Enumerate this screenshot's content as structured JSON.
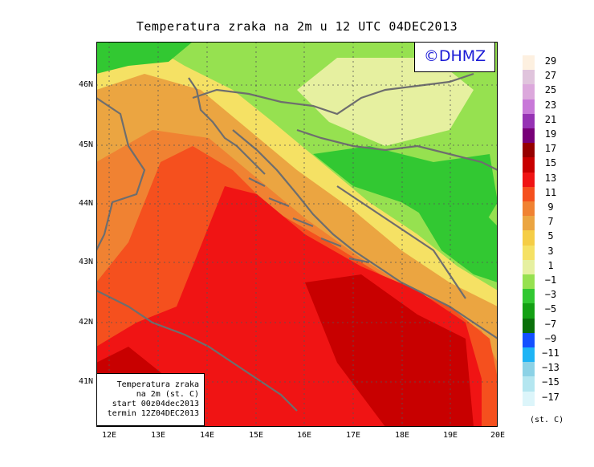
{
  "title": "Temperatura zraka na 2m u 12 UTC 04DEC2013",
  "logo": "©DHMZ",
  "info_box": {
    "line1": "Temperatura zraka",
    "line2": "na 2m (st. C)",
    "line3": "start 00z04dec2013",
    "line4": "termin 12Z04DEC2013"
  },
  "lat_labels": [
    "46N",
    "45N",
    "44N",
    "43N",
    "42N",
    "41N"
  ],
  "lon_labels": [
    "12E",
    "13E",
    "14E",
    "15E",
    "16E",
    "17E",
    "18E",
    "19E",
    "20E"
  ],
  "colorbar": {
    "labels": [
      "29",
      "27",
      "25",
      "23",
      "21",
      "19",
      "17",
      "15",
      "13",
      "11",
      "9",
      "7",
      "5",
      "3",
      "1",
      "−1",
      "−3",
      "−5",
      "−7",
      "−9",
      "−11",
      "−13",
      "−15",
      "−17"
    ],
    "colors": [
      "#fdf0e0",
      "#e0c4dc",
      "#dca8dc",
      "#c878d8",
      "#9632b4",
      "#780078",
      "#960000",
      "#c80000",
      "#f01414",
      "#f5501e",
      "#f08232",
      "#eba541",
      "#f5cd46",
      "#f5e164",
      "#e6f0a0",
      "#96e150",
      "#32c832",
      "#14a014",
      "#0a700a",
      "#1450ff",
      "#1eb4f5",
      "#8cd2e6",
      "#b4e6f0",
      "#dcf5fa"
    ],
    "units": "(st. C)"
  },
  "map_colors": {
    "dark_red": "#c80000",
    "red": "#f01414",
    "orange_red": "#f5501e",
    "orange": "#f08232",
    "light_orange": "#eba541",
    "yellow": "#f5cd46",
    "pale_yellow": "#f5e164",
    "pale_green": "#e6f0a0",
    "light_green": "#96e150",
    "green": "#32c832",
    "coast_line": "#6e6e6e"
  }
}
